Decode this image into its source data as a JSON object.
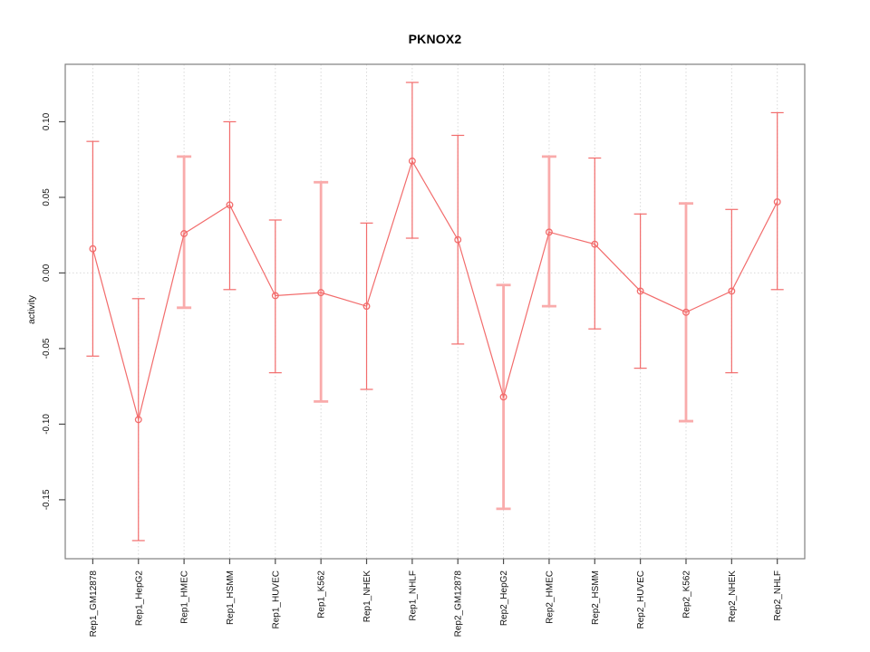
{
  "chart_data": {
    "type": "line",
    "title": "PKNOX2",
    "ylabel": "activity",
    "xlabel": "",
    "marker": "open-circle",
    "legend": "none",
    "categories": [
      "Rep1_GM12878",
      "Rep1_HepG2",
      "Rep1_HMEC",
      "Rep1_HSMM",
      "Rep1_HUVEC",
      "Rep1_K562",
      "Rep1_NHEK",
      "Rep1_NHLF",
      "Rep2_GM12878",
      "Rep2_HepG2",
      "Rep2_HMEC",
      "Rep2_HSMM",
      "Rep2_HUVEC",
      "Rep2_K562",
      "Rep2_NHEK",
      "Rep2_NHLF"
    ],
    "series": [
      {
        "name": "activity",
        "values": [
          0.016,
          -0.097,
          0.026,
          0.045,
          -0.015,
          -0.013,
          -0.022,
          0.074,
          0.022,
          -0.082,
          0.027,
          0.019,
          -0.012,
          -0.026,
          -0.012,
          0.047
        ],
        "lower": [
          -0.055,
          -0.177,
          -0.023,
          -0.011,
          -0.066,
          -0.085,
          -0.077,
          0.023,
          -0.047,
          -0.156,
          -0.022,
          -0.037,
          -0.063,
          -0.098,
          -0.066,
          -0.011
        ],
        "upper": [
          0.087,
          -0.017,
          0.077,
          0.1,
          0.035,
          0.06,
          0.033,
          0.126,
          0.091,
          -0.008,
          0.077,
          0.076,
          0.039,
          0.046,
          0.042,
          0.106
        ],
        "thick_bar": [
          false,
          false,
          true,
          false,
          false,
          true,
          false,
          false,
          false,
          true,
          true,
          false,
          false,
          true,
          false,
          false
        ]
      }
    ],
    "ylim": [
      -0.189,
      0.138
    ],
    "yticks": [
      0.1,
      0.05,
      0.0,
      -0.05,
      -0.1,
      -0.15
    ],
    "ytick_labels": [
      "0.10",
      "0.05",
      "0.00",
      "-0.05",
      "-0.10",
      "-0.15"
    ],
    "zero_line": 0,
    "grid": "vertical dotted line at each category; dotted horizontal line at zero",
    "colors": {
      "line": "#f26c6c",
      "marker": "#f26c6c",
      "error_bar": "#f26c6c",
      "error_bar_thick": "#f9abab",
      "grid": "#d9d9d9",
      "box": "#808080",
      "tick": "#4d4d4d",
      "text": "#111111",
      "background": "#ffffff"
    }
  }
}
